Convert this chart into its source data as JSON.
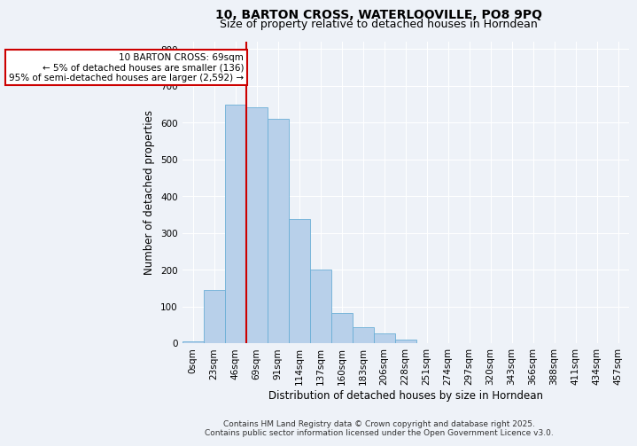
{
  "title": "10, BARTON CROSS, WATERLOOVILLE, PO8 9PQ",
  "subtitle": "Size of property relative to detached houses in Horndean",
  "xlabel": "Distribution of detached houses by size in Horndean",
  "ylabel": "Number of detached properties",
  "bar_values": [
    5,
    145,
    648,
    642,
    610,
    338,
    200,
    83,
    43,
    26,
    10,
    0,
    0,
    0,
    0,
    0,
    0,
    0,
    0,
    0,
    0
  ],
  "bin_labels": [
    "0sqm",
    "23sqm",
    "46sqm",
    "69sqm",
    "91sqm",
    "114sqm",
    "137sqm",
    "160sqm",
    "183sqm",
    "206sqm",
    "228sqm",
    "251sqm",
    "274sqm",
    "297sqm",
    "320sqm",
    "343sqm",
    "366sqm",
    "388sqm",
    "411sqm",
    "434sqm",
    "457sqm"
  ],
  "bar_color": "#b8d0ea",
  "bar_edge_color": "#6aaed6",
  "ylim": [
    0,
    820
  ],
  "yticks": [
    0,
    100,
    200,
    300,
    400,
    500,
    600,
    700,
    800
  ],
  "marker_bin_index": 3,
  "annotation_title": "10 BARTON CROSS: 69sqm",
  "annotation_line1": "← 5% of detached houses are smaller (136)",
  "annotation_line2": "95% of semi-detached houses are larger (2,592) →",
  "marker_line_color": "#cc0000",
  "annotation_box_color": "#ffffff",
  "annotation_box_edge": "#cc0000",
  "footer1": "Contains HM Land Registry data © Crown copyright and database right 2025.",
  "footer2": "Contains public sector information licensed under the Open Government Licence v3.0.",
  "bg_color": "#eef2f8",
  "grid_color": "#ffffff",
  "title_fontsize": 10,
  "subtitle_fontsize": 9,
  "axis_label_fontsize": 8.5,
  "tick_fontsize": 7.5,
  "annotation_fontsize": 7.5,
  "footer_fontsize": 6.5
}
